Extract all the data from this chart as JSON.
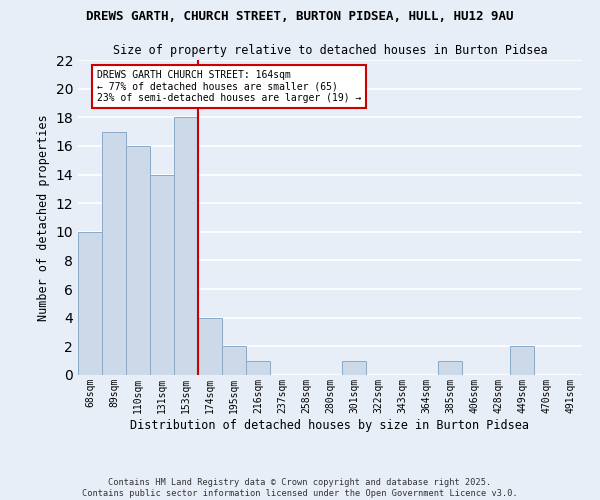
{
  "title_line1": "DREWS GARTH, CHURCH STREET, BURTON PIDSEA, HULL, HU12 9AU",
  "title_line2": "Size of property relative to detached houses in Burton Pidsea",
  "xlabel": "Distribution of detached houses by size in Burton Pidsea",
  "ylabel": "Number of detached properties",
  "categories": [
    "68sqm",
    "89sqm",
    "110sqm",
    "131sqm",
    "153sqm",
    "174sqm",
    "195sqm",
    "216sqm",
    "237sqm",
    "258sqm",
    "280sqm",
    "301sqm",
    "322sqm",
    "343sqm",
    "364sqm",
    "385sqm",
    "406sqm",
    "428sqm",
    "449sqm",
    "470sqm",
    "491sqm"
  ],
  "values": [
    10,
    17,
    16,
    14,
    18,
    4,
    2,
    1,
    0,
    0,
    0,
    1,
    0,
    0,
    0,
    1,
    0,
    0,
    2,
    0,
    0
  ],
  "bar_color": "#ccd9e8",
  "bar_edge_color": "#8aaac8",
  "vline_x": 4.5,
  "vline_color": "#cc0000",
  "annotation_text": "DREWS GARTH CHURCH STREET: 164sqm\n← 77% of detached houses are smaller (65)\n23% of semi-detached houses are larger (19) →",
  "annotation_box_color": "#ffffff",
  "annotation_box_edge": "#cc0000",
  "ylim": [
    0,
    22
  ],
  "yticks": [
    0,
    2,
    4,
    6,
    8,
    10,
    12,
    14,
    16,
    18,
    20,
    22
  ],
  "background_color": "#e8eef8",
  "grid_color": "#ffffff",
  "footer_line1": "Contains HM Land Registry data © Crown copyright and database right 2025.",
  "footer_line2": "Contains public sector information licensed under the Open Government Licence v3.0."
}
